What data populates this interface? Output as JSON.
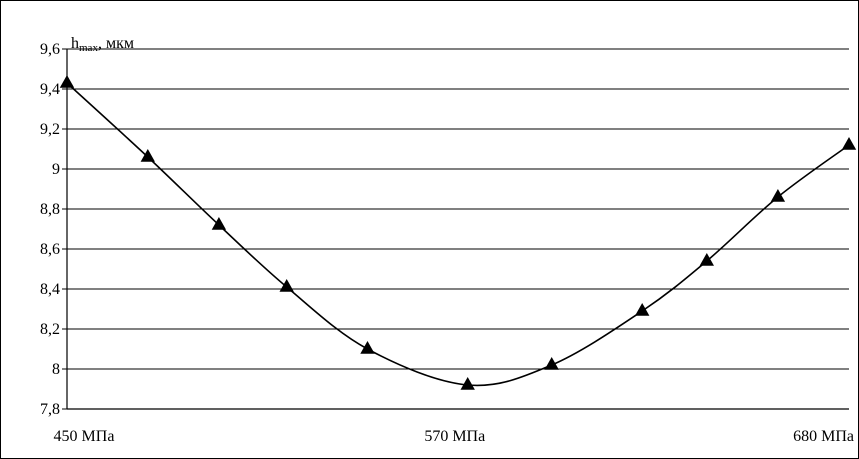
{
  "chart_data": {
    "type": "line",
    "title": "",
    "xlabel": "",
    "ylabel": "h",
    "ylabel_sub": "max",
    "ylabel_unit": ", мкм",
    "x": [
      450,
      475,
      497,
      518,
      543,
      574,
      600,
      628,
      648,
      670,
      692
    ],
    "y": [
      9.43,
      9.06,
      8.72,
      8.41,
      8.1,
      7.92,
      8.02,
      8.29,
      8.54,
      8.86,
      9.12
    ],
    "xlim": [
      450,
      692
    ],
    "ylim": [
      7.8,
      9.6
    ],
    "yticks": [
      7.8,
      8.0,
      8.2,
      8.4,
      8.6,
      8.8,
      9.0,
      9.2,
      9.4,
      9.6
    ],
    "ytick_labels": [
      "7,8",
      "8",
      "8,2",
      "8,4",
      "8,6",
      "8,8",
      "9",
      "9,2",
      "9,4",
      "9,6"
    ],
    "xtick_values": [
      450,
      570,
      680
    ],
    "xtick_labels": [
      "450 МПа",
      "570 МПа",
      "680 МПа"
    ],
    "grid": "horizontal",
    "marker": "triangle",
    "line_color": "#000000"
  }
}
